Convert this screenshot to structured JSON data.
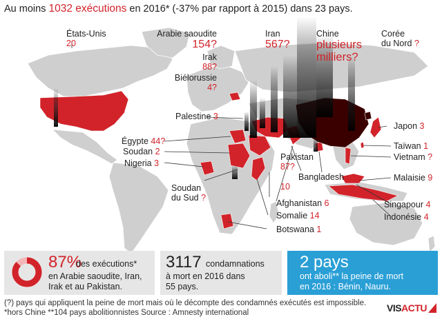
{
  "headline": {
    "prefix": "Au moins ",
    "number": "1032 exécutions",
    "suffix": " en 2016* (-37% par rapport à 2015) dans 23 pays."
  },
  "labels": {
    "usa": {
      "name": "États-Unis",
      "value": "20"
    },
    "arabie": {
      "name": "Arabie saoudite",
      "value": "154",
      "q": "?"
    },
    "iran": {
      "name": "Iran",
      "value": "567",
      "q": "?"
    },
    "chine": {
      "name": "Chine",
      "value1": "plusieurs",
      "value2": "milliers",
      "q": "?"
    },
    "coree": {
      "name1": "Corée",
      "name2": "du Nord",
      "q": "?"
    },
    "irak": {
      "name": "Irak",
      "value": "88",
      "q": "?"
    },
    "bielorussie": {
      "name": "Biélorussie",
      "value": "4",
      "q": "?"
    },
    "palestine": {
      "name": "Palestine",
      "value": "3"
    },
    "japon": {
      "name": "Japon",
      "value": "3"
    },
    "egypte": {
      "name": "Égypte",
      "value": "44",
      "q": "?"
    },
    "soudan": {
      "name": "Soudan",
      "value": "2"
    },
    "nigeria": {
      "name": "Nigeria",
      "value": "3"
    },
    "taiwan": {
      "name": "Taïwan",
      "value": "1"
    },
    "vietnam": {
      "name": "Vietnam",
      "q": "?"
    },
    "pakistan": {
      "name": "Pakistan",
      "value": "87",
      "q": "?"
    },
    "bangladesh": {
      "name": "Bangladesh",
      "value": "10"
    },
    "malaisie": {
      "name": "Malaisie",
      "value": "9"
    },
    "soudan_sud": {
      "name1": "Soudan",
      "name2": "du Sud",
      "q": "?"
    },
    "singapour": {
      "name": "Singapour",
      "value": "4"
    },
    "afghanistan": {
      "name": "Afghanistan",
      "value": "6"
    },
    "indonesie": {
      "name": "Indonésie",
      "value": "4"
    },
    "somalie": {
      "name": "Somalie",
      "value": "14"
    },
    "botswana": {
      "name": "Botswana",
      "value": "1"
    }
  },
  "box1": {
    "pct": "87%",
    "pct_value": 87,
    "line1": "des exécutions*",
    "line2": "en Arabie saoudite, Iran,",
    "line3": "Irak et au Pakistan."
  },
  "box2": {
    "number": "3117",
    "line1": "condamnations",
    "line2": "à mort en 2016 dans",
    "line3": "55 pays."
  },
  "box3": {
    "number": "2 pays",
    "line1": "ont aboli** la peine de mort",
    "line2": "en 2016 : Bénin, Nauru."
  },
  "notes": {
    "note1": "(?) pays qui appliquent la peine de mort mais où le décompte des condamnés exécutés est impossible.",
    "note2": "*hors Chine   **104 pays abolitionnistes   Source : Amnesty international"
  },
  "brand": {
    "vis": "VIS",
    "actu": "ACTU"
  },
  "colors": {
    "accent": "#d2232a",
    "dark": "#3a0000",
    "land": "#cfcfcf",
    "info_blue": "#2a9fd6",
    "box_grey": "#e6e6e6"
  }
}
